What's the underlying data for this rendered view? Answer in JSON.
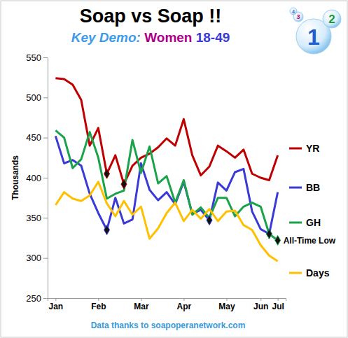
{
  "chart_data": {
    "type": "line",
    "title": "Soap vs Soap !!",
    "subtitle": [
      "Key Demo:",
      "Women",
      "18-49"
    ],
    "y_label": "Thousands",
    "source": "Data thanks to soapoperanetwork.com",
    "badge": [
      "1",
      "2",
      "3",
      "4"
    ],
    "annotations": [
      {
        "text": "All-Time Low",
        "series": 2,
        "index": 26
      }
    ],
    "categories": [
      "Jan",
      null,
      null,
      null,
      null,
      "Feb",
      null,
      null,
      null,
      null,
      "Mar",
      null,
      null,
      null,
      null,
      "Apr",
      null,
      null,
      null,
      null,
      "May",
      null,
      null,
      null,
      "Jun",
      null,
      "Jul"
    ],
    "series": [
      {
        "name": "YR",
        "color": "#c00000",
        "values": [
          524,
          523,
          516,
          497,
          440,
          462,
          405,
          428,
          392,
          415,
          425,
          430,
          438,
          449,
          440,
          473,
          428,
          403,
          414,
          440,
          433,
          425,
          435,
          405,
          400,
          397,
          428
        ],
        "marked": [
          6,
          8
        ]
      },
      {
        "name": "BB",
        "color": "#3a3ad6",
        "values": [
          452,
          418,
          422,
          415,
          380,
          356,
          335,
          375,
          343,
          348,
          418,
          385,
          372,
          382,
          367,
          395,
          355,
          360,
          347,
          394,
          384,
          407,
          411,
          358,
          336,
          330,
          382
        ],
        "marked": [
          6,
          18,
          25
        ]
      },
      {
        "name": "GH",
        "color": "#1aa34a",
        "values": [
          459,
          450,
          412,
          423,
          457,
          425,
          374,
          380,
          384,
          447,
          406,
          439,
          393,
          402,
          369,
          397,
          354,
          363,
          350,
          375,
          375,
          352,
          364,
          369,
          364,
          330,
          322
        ],
        "marked": [
          25,
          26
        ]
      },
      {
        "name": "Days",
        "color": "#ffc000",
        "values": [
          366,
          382,
          374,
          371,
          378,
          395,
          368,
          352,
          371,
          354,
          364,
          324,
          337,
          356,
          369,
          346,
          360,
          349,
          361,
          346,
          358,
          359,
          341,
          335,
          316,
          303,
          296
        ],
        "marked": []
      }
    ],
    "ylim": [
      250,
      550
    ],
    "yticks": [
      250,
      300,
      350,
      400,
      450,
      500,
      550
    ],
    "grid": false,
    "legend": "right"
  }
}
